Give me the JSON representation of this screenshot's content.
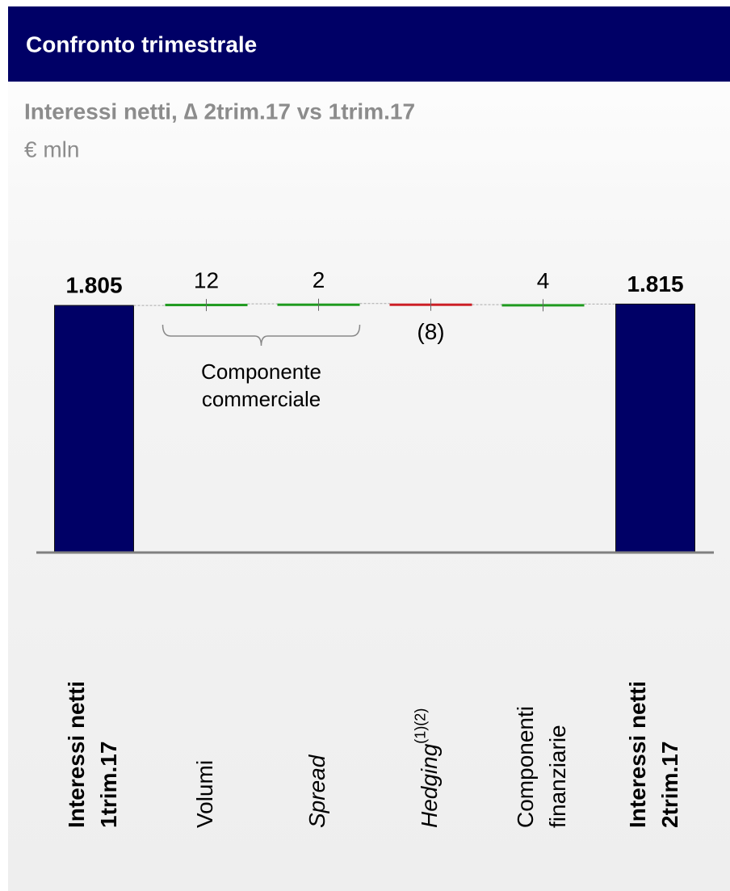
{
  "chart_data": {
    "type": "waterfall",
    "header": "Confronto trimestrale",
    "title": "Interessi netti, ∆ 2trim.17 vs 1trim.17",
    "subtitle": "€ mln",
    "categories": [
      [
        "Interessi netti",
        "1trim.17"
      ],
      [
        "Volumi"
      ],
      [
        "Spread"
      ],
      [
        "Hedging"
      ],
      [
        "Componenti",
        "finanziarie"
      ],
      [
        "Interessi netti",
        "2trim.17"
      ]
    ],
    "footnote_marks": [
      null,
      null,
      null,
      "(1)(2)",
      null,
      null
    ],
    "italic": [
      false,
      false,
      true,
      true,
      false,
      false
    ],
    "totals": [
      true,
      false,
      false,
      false,
      false,
      true
    ],
    "values": [
      1805,
      12,
      2,
      -8,
      4,
      1815
    ],
    "value_labels": [
      "1.805",
      "12",
      "2",
      "(8)",
      "4",
      "1.815"
    ],
    "annotation": [
      "Componente",
      "commerciale"
    ],
    "colors": {
      "total": "#000066",
      "increase": "#1f9a1f",
      "decrease": "#cc1f26"
    },
    "ylim": [
      0,
      1900
    ]
  }
}
